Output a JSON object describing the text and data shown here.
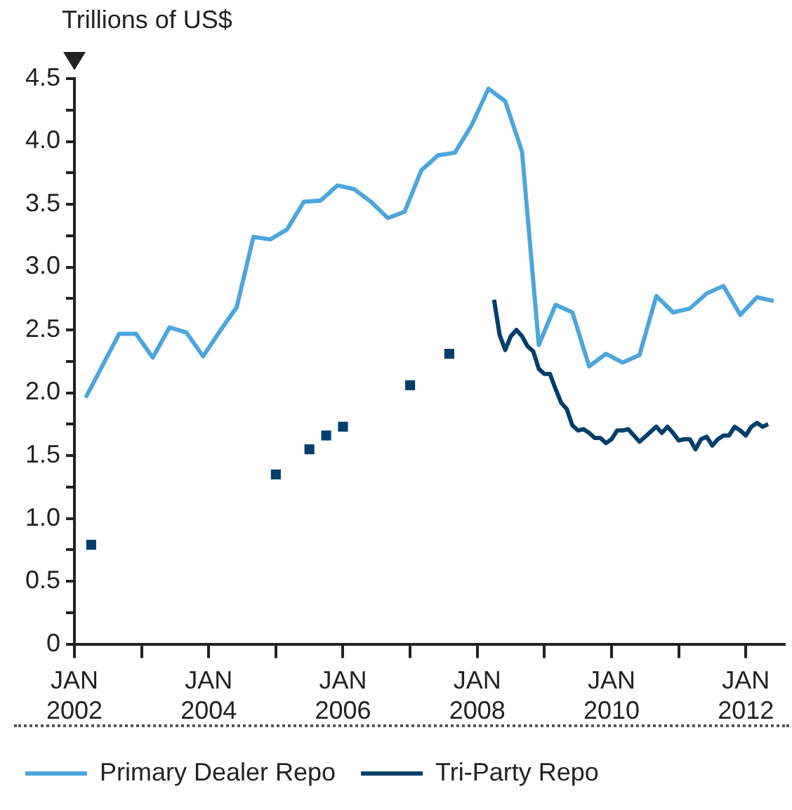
{
  "chart_data": {
    "type": "line",
    "ylabel": "Trillions of US$",
    "xlim": [
      "2002-01",
      "2012-08"
    ],
    "xticks": [
      {
        "value": "2002-01",
        "label": "JAN 2002"
      },
      {
        "value": "2003-01",
        "label": null
      },
      {
        "value": "2004-01",
        "label": "JAN 2004"
      },
      {
        "value": "2005-01",
        "label": null
      },
      {
        "value": "2006-01",
        "label": "JAN 2006"
      },
      {
        "value": "2007-01",
        "label": null
      },
      {
        "value": "2008-01",
        "label": "JAN 2008"
      },
      {
        "value": "2009-01",
        "label": null
      },
      {
        "value": "2010-01",
        "label": "JAN 2010"
      },
      {
        "value": "2011-01",
        "label": null
      },
      {
        "value": "2012-01",
        "label": "JAN 2012"
      }
    ],
    "ylim": [
      0,
      4.5
    ],
    "yticks": [
      0,
      {
        "value": 0.25,
        "label": null
      },
      0.5,
      {
        "value": 0.75,
        "label": null
      },
      {
        "value": 1,
        "label": "1.0"
      },
      {
        "value": 1.25,
        "label": null
      },
      1.5,
      {
        "value": 1.75,
        "label": null
      },
      {
        "value": 2,
        "label": "2.0"
      },
      {
        "value": 2.25,
        "label": null
      },
      2.5,
      {
        "value": 2.75,
        "label": null
      },
      {
        "value": 3,
        "label": "3.0"
      },
      {
        "value": 3.25,
        "label": null
      },
      3.5,
      {
        "value": 3.75,
        "label": null
      },
      {
        "value": 4,
        "label": "4.0"
      },
      {
        "value": 4.25,
        "label": null
      },
      4.5
    ],
    "grid": false,
    "legend": "bottom",
    "line_style": "solid",
    "series": [
      {
        "name": "Primary Dealer Repo",
        "type": "line",
        "marker": "none",
        "color": "#4ca6dc",
        "x": [
          "2002-03",
          "2002-09",
          "2002-12",
          "2003-03",
          "2003-06",
          "2003-09",
          "2003-12",
          "2004-03",
          "2004-06",
          "2004-09",
          "2004-12",
          "2005-03",
          "2005-06",
          "2005-09",
          "2005-12",
          "2006-03",
          "2006-06",
          "2006-09",
          "2006-12",
          "2007-03",
          "2007-06",
          "2007-09",
          "2007-12",
          "2008-03",
          "2008-06",
          "2008-09",
          "2008-12",
          "2009-03",
          "2009-06",
          "2009-09",
          "2009-12",
          "2010-03",
          "2010-06",
          "2010-09",
          "2010-12",
          "2011-03",
          "2011-06",
          "2011-09",
          "2011-12",
          "2012-03",
          "2012-06"
        ],
        "values": [
          1.96,
          2.47,
          2.47,
          2.28,
          2.52,
          2.48,
          2.29,
          2.49,
          2.68,
          3.24,
          3.22,
          3.3,
          3.52,
          3.53,
          3.65,
          3.62,
          3.52,
          3.39,
          3.44,
          3.77,
          3.89,
          3.91,
          4.13,
          4.42,
          4.32,
          3.92,
          2.38,
          2.7,
          2.64,
          2.21,
          2.31,
          2.24,
          2.3,
          2.77,
          2.64,
          2.67,
          2.79,
          2.85,
          2.62,
          2.76,
          2.73
        ]
      },
      {
        "name": "Tri-Party Repo",
        "type": "line",
        "marker": "none",
        "color": "#003f6b",
        "x": [
          "2008-04",
          "2008-05",
          "2008-06",
          "2008-07",
          "2008-08",
          "2008-09",
          "2008-10",
          "2008-11",
          "2008-12",
          "2009-01",
          "2009-02",
          "2009-03",
          "2009-04",
          "2009-05",
          "2009-06",
          "2009-07",
          "2009-08",
          "2009-09",
          "2009-10",
          "2009-11",
          "2009-12",
          "2010-01",
          "2010-02",
          "2010-03",
          "2010-04",
          "2010-05",
          "2010-06",
          "2010-07",
          "2010-08",
          "2010-09",
          "2010-10",
          "2010-11",
          "2010-12",
          "2011-01",
          "2011-02",
          "2011-03",
          "2011-04",
          "2011-05",
          "2011-06",
          "2011-07",
          "2011-08",
          "2011-09",
          "2011-10",
          "2011-11",
          "2011-12",
          "2012-01",
          "2012-02",
          "2012-03",
          "2012-04",
          "2012-05"
        ],
        "values": [
          2.74,
          2.46,
          2.34,
          2.45,
          2.5,
          2.45,
          2.37,
          2.33,
          2.19,
          2.15,
          2.15,
          2.03,
          1.92,
          1.87,
          1.74,
          1.7,
          1.71,
          1.68,
          1.64,
          1.64,
          1.6,
          1.63,
          1.7,
          1.7,
          1.71,
          1.66,
          1.61,
          1.65,
          1.69,
          1.73,
          1.68,
          1.73,
          1.68,
          1.62,
          1.63,
          1.63,
          1.55,
          1.63,
          1.65,
          1.58,
          1.63,
          1.66,
          1.66,
          1.73,
          1.7,
          1.66,
          1.73,
          1.76,
          1.73,
          1.75
        ]
      },
      {
        "type": "scatter",
        "marker": "square",
        "color": "#003f6b",
        "x": [
          "2002-04",
          "2005-01",
          "2005-07",
          "2005-10",
          "2006-01",
          "2007-01",
          "2007-08"
        ],
        "values": [
          0.79,
          1.35,
          1.55,
          1.66,
          1.73,
          2.06,
          2.31
        ]
      }
    ]
  }
}
